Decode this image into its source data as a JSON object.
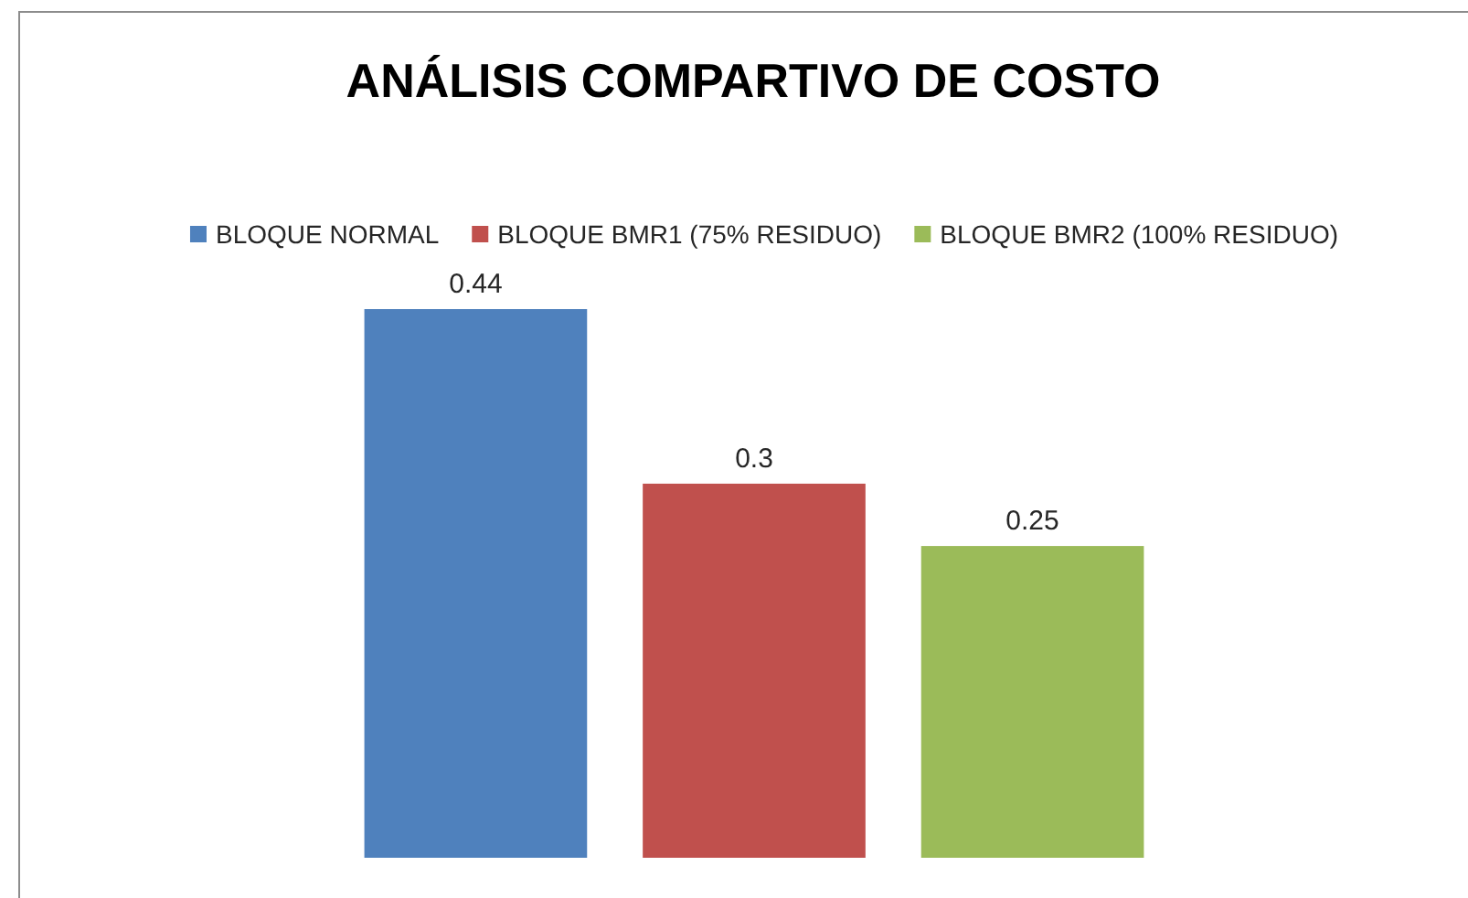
{
  "chart_data": {
    "type": "bar",
    "title": "ANÁLISIS COMPARTIVO DE COSTO",
    "categories": [
      null
    ],
    "series": [
      {
        "name": "BLOQUE NORMAL",
        "color": "#4f81bd",
        "values": [
          0.44
        ]
      },
      {
        "name": "BLOQUE BMR1 (75% RESIDUO)",
        "color": "#c0504d",
        "values": [
          0.3
        ]
      },
      {
        "name": "BLOQUE BMR2 (100% RESIDUO)",
        "color": "#9bbb59",
        "values": [
          0.25
        ]
      }
    ],
    "data_labels": true,
    "legend": "top"
  }
}
